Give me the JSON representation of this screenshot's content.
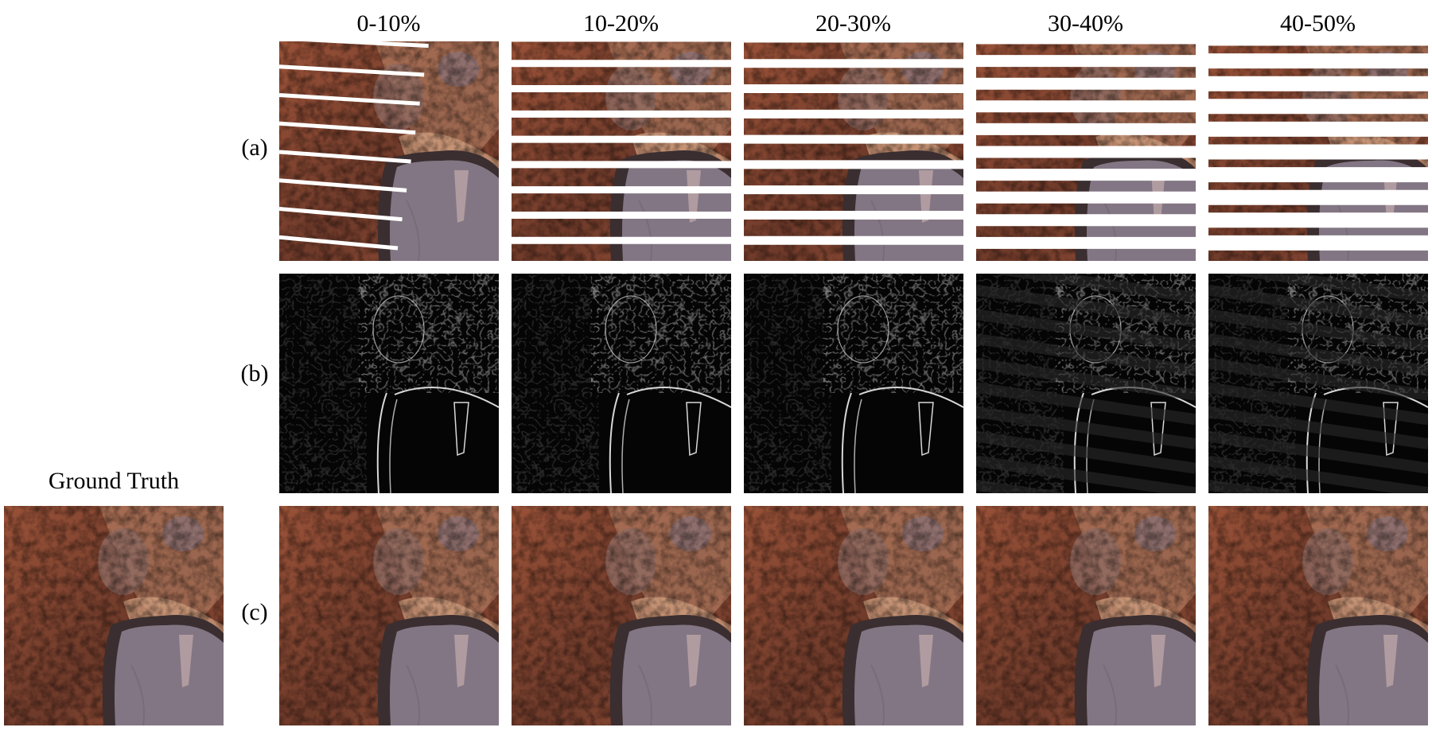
{
  "columns": [
    {
      "label": "0-10%",
      "stripe_count": 8,
      "stripe_width": 5,
      "stripe_reach": 0.68
    },
    {
      "label": "10-20%",
      "stripe_count": 9,
      "stripe_width": 9,
      "stripe_reach": 1.0
    },
    {
      "label": "20-30%",
      "stripe_count": 9,
      "stripe_width": 11,
      "stripe_reach": 1.0
    },
    {
      "label": "30-40%",
      "stripe_count": 10,
      "stripe_width": 15,
      "stripe_reach": 1.0
    },
    {
      "label": "40-50%",
      "stripe_count": 10,
      "stripe_width": 19,
      "stripe_reach": 1.0
    }
  ],
  "rows": [
    {
      "label": "(a)",
      "type": "masked"
    },
    {
      "label": "(b)",
      "type": "edge"
    },
    {
      "label": "(c)",
      "type": "reconstructed"
    }
  ],
  "ground_truth": {
    "label": "Ground Truth"
  },
  "colors": {
    "terrain_dark": "#6e3a2a",
    "terrain_mid": "#9a5238",
    "terrain_light": "#c08a6e",
    "lake": "#837684",
    "lake_rim": "#3a2e30",
    "edge_bg": "#050505",
    "edge_line": "#d8d8d8",
    "stripe": "#ffffff"
  }
}
